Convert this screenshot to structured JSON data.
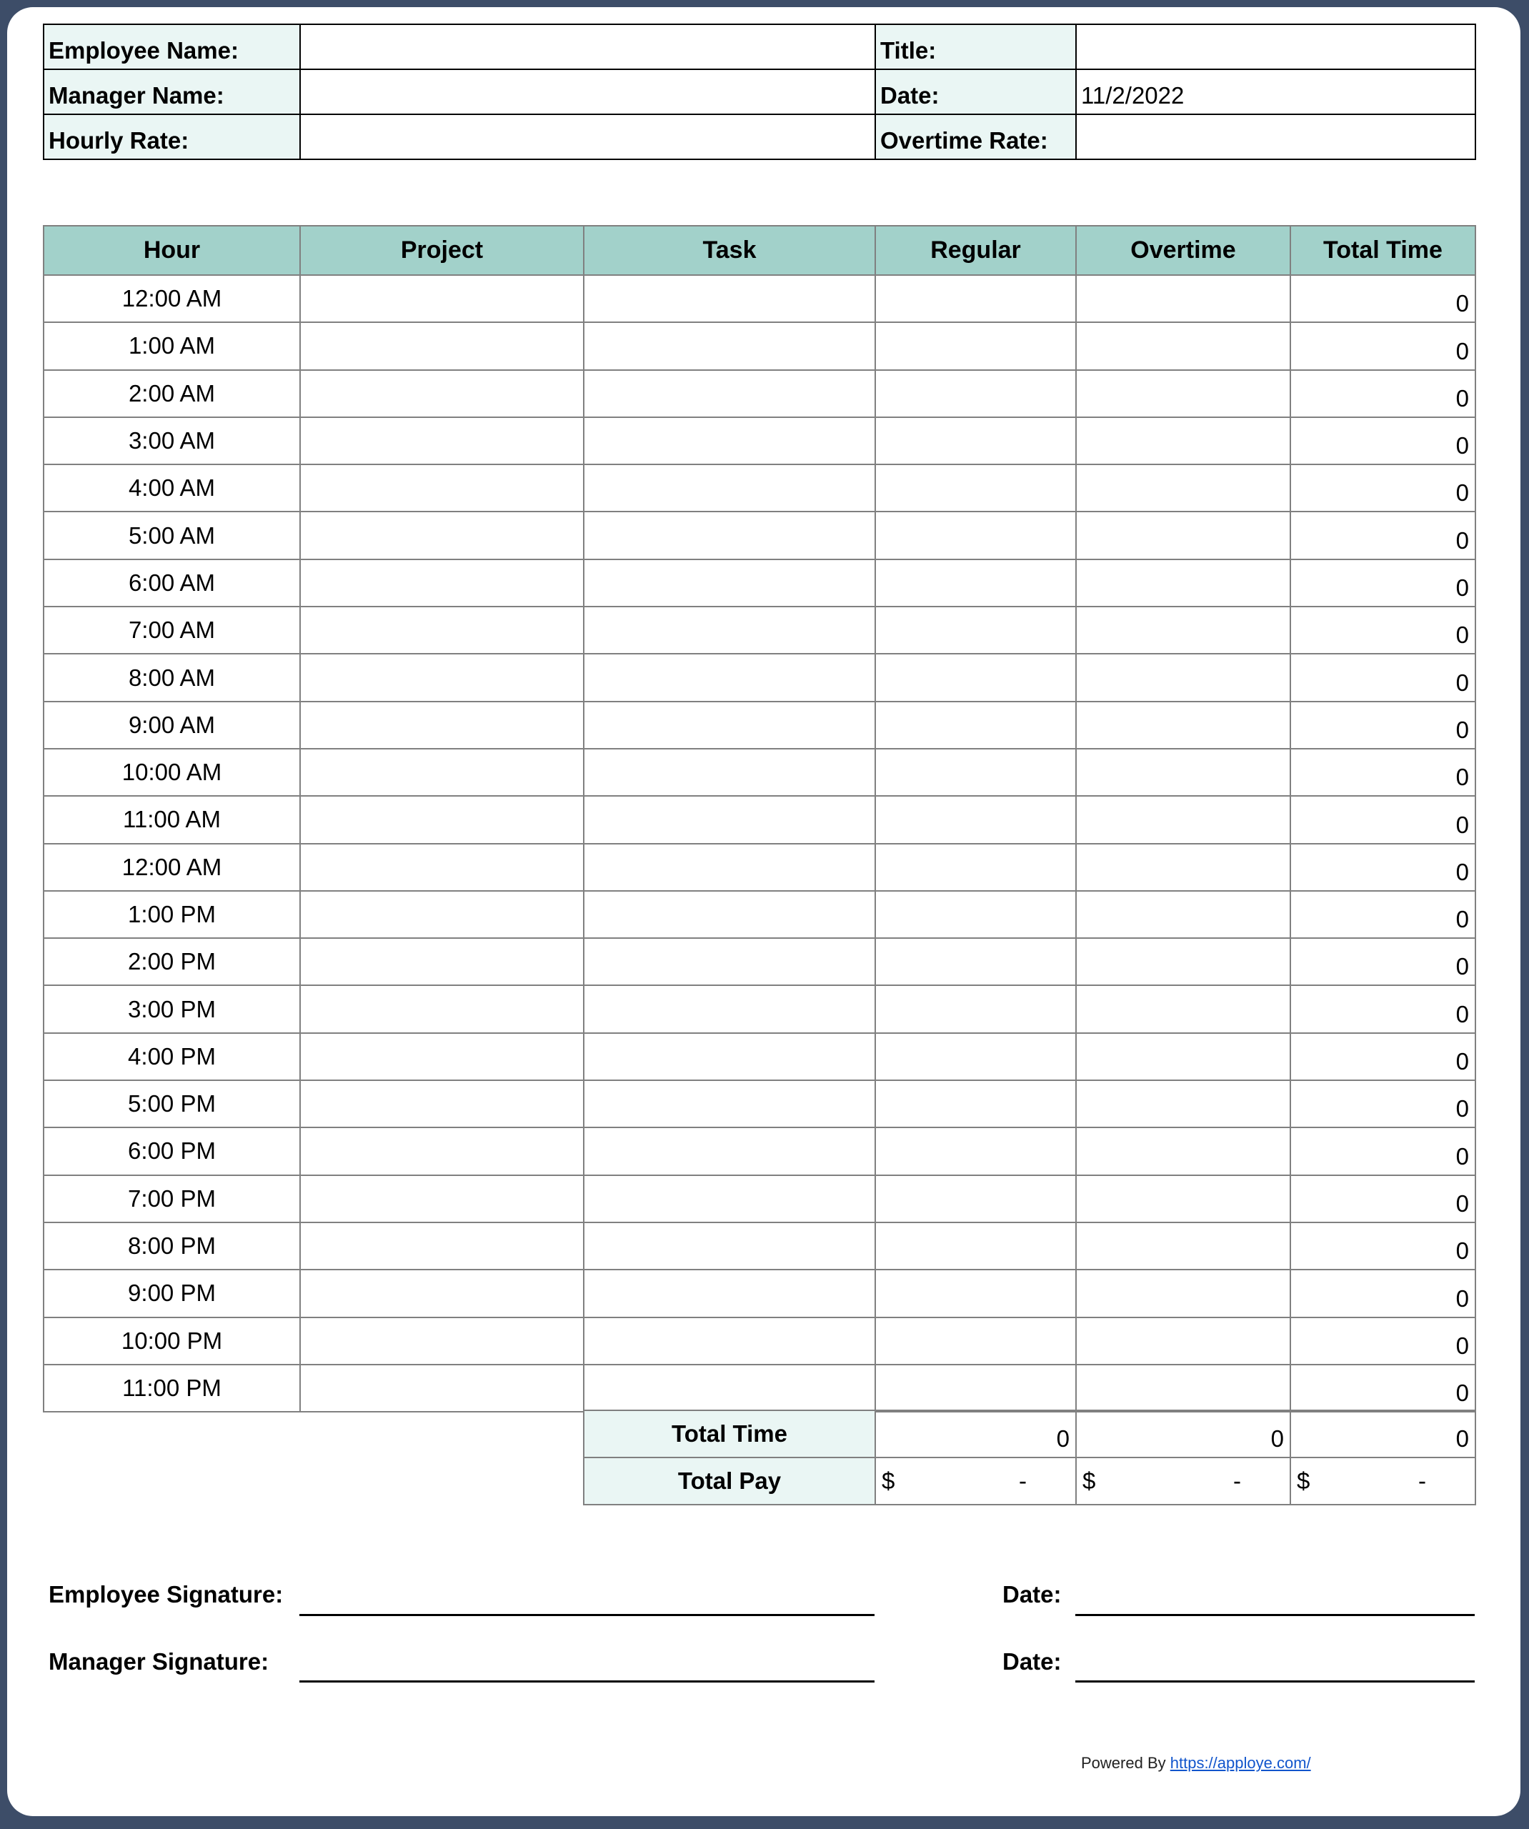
{
  "info": {
    "employee_name_label": "Employee Name:",
    "employee_name_value": "",
    "title_label": "Title:",
    "title_value": "",
    "manager_name_label": "Manager Name:",
    "manager_name_value": "",
    "date_label": "Date:",
    "date_value": "11/2/2022",
    "hourly_rate_label": "Hourly Rate:",
    "hourly_rate_value": "",
    "overtime_rate_label": "Overtime Rate:",
    "overtime_rate_value": ""
  },
  "table": {
    "headers": [
      "Hour",
      "Project",
      "Task",
      "Regular",
      "Overtime",
      "Total Time"
    ],
    "rows": [
      {
        "hour": "12:00 AM",
        "total": "0"
      },
      {
        "hour": "1:00 AM",
        "total": "0"
      },
      {
        "hour": "2:00 AM",
        "total": "0"
      },
      {
        "hour": "3:00 AM",
        "total": "0"
      },
      {
        "hour": "4:00 AM",
        "total": "0"
      },
      {
        "hour": "5:00 AM",
        "total": "0"
      },
      {
        "hour": "6:00 AM",
        "total": "0"
      },
      {
        "hour": "7:00 AM",
        "total": "0"
      },
      {
        "hour": "8:00 AM",
        "total": "0"
      },
      {
        "hour": "9:00 AM",
        "total": "0"
      },
      {
        "hour": "10:00 AM",
        "total": "0"
      },
      {
        "hour": "11:00 AM",
        "total": "0"
      },
      {
        "hour": "12:00 AM",
        "total": "0"
      },
      {
        "hour": "1:00 PM",
        "total": "0"
      },
      {
        "hour": "2:00 PM",
        "total": "0"
      },
      {
        "hour": "3:00 PM",
        "total": "0"
      },
      {
        "hour": "4:00 PM",
        "total": "0"
      },
      {
        "hour": "5:00 PM",
        "total": "0"
      },
      {
        "hour": "6:00 PM",
        "total": "0"
      },
      {
        "hour": "7:00 PM",
        "total": "0"
      },
      {
        "hour": "8:00 PM",
        "total": "0"
      },
      {
        "hour": "9:00 PM",
        "total": "0"
      },
      {
        "hour": "10:00 PM",
        "total": "0"
      },
      {
        "hour": "11:00 PM",
        "total": "0"
      }
    ]
  },
  "totals": {
    "total_time_label": "Total Time",
    "total_time_values": [
      "0",
      "0",
      "0"
    ],
    "total_pay_label": "Total Pay",
    "currency": "$",
    "total_pay_values": [
      "-",
      "-",
      "-"
    ]
  },
  "signatures": {
    "employee_label": "Employee Signature:",
    "manager_label": "Manager Signature:",
    "date_label": "Date:"
  },
  "footer": {
    "powered_by": "Powered By",
    "link": "https://apploye.com/"
  },
  "colors": {
    "frame": "#3d4d68",
    "header_fill": "#a2d1ca",
    "label_fill": "#eaf6f4",
    "link": "#1155cc"
  }
}
